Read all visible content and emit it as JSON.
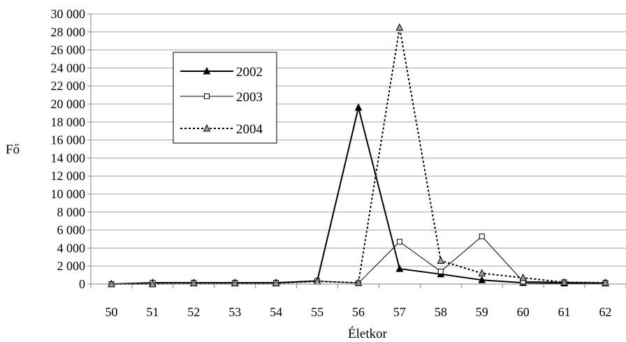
{
  "chart_data": {
    "type": "line",
    "title": "",
    "xlabel": "Életkor",
    "ylabel": "Fő",
    "x": [
      50,
      51,
      52,
      53,
      54,
      55,
      56,
      57,
      58,
      59,
      60,
      61,
      62
    ],
    "x_tick_labels": [
      "50",
      "51",
      "52",
      "53",
      "54",
      "55",
      "56",
      "57",
      "58",
      "59",
      "60",
      "61",
      "62"
    ],
    "ylim": [
      0,
      30000
    ],
    "y_ticks": [
      0,
      2000,
      4000,
      6000,
      8000,
      10000,
      12000,
      14000,
      16000,
      18000,
      20000,
      22000,
      24000,
      26000,
      28000,
      30000
    ],
    "y_tick_labels": [
      "0",
      "2 000",
      "4 000",
      "6 000",
      "8 000",
      "10 000",
      "12 000",
      "14 000",
      "16 000",
      "18 000",
      "20 000",
      "22 000",
      "24 000",
      "26 000",
      "28 000",
      "30 000"
    ],
    "grid": "horizontal",
    "legend_position": "upper-left",
    "series": [
      {
        "name": "2002",
        "values": [
          0,
          150,
          150,
          150,
          150,
          350,
          19600,
          1700,
          1100,
          450,
          150,
          100,
          100
        ],
        "line_style": "solid",
        "line_width": 2,
        "marker": "filled-triangle",
        "color": "#000000"
      },
      {
        "name": "2003",
        "values": [
          0,
          150,
          150,
          150,
          150,
          350,
          100,
          4700,
          1400,
          5300,
          300,
          200,
          150
        ],
        "line_style": "solid",
        "line_width": 1,
        "marker": "open-square",
        "color": "#000000"
      },
      {
        "name": "2004",
        "values": [
          0,
          0,
          100,
          100,
          100,
          300,
          150,
          28500,
          2600,
          1200,
          700,
          200,
          150
        ],
        "line_style": "dotted",
        "line_width": 2,
        "marker": "gray-triangle",
        "color": "#000000"
      }
    ]
  }
}
